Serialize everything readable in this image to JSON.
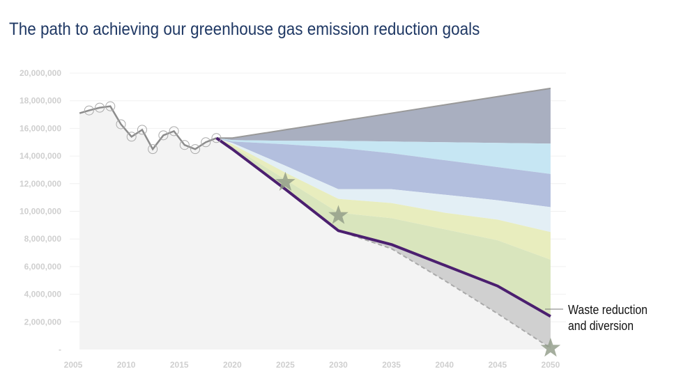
{
  "title": "The path to achieving our greenhouse gas emission reduction goals",
  "chart_data": {
    "type": "area",
    "title": "The path to achieving our greenhouse gas emission reduction goals",
    "xlim": [
      2005,
      2050
    ],
    "ylim": [
      0,
      20000000
    ],
    "x_ticks": [
      "2005",
      "2010",
      "2015",
      "2020",
      "2025",
      "2030",
      "2035",
      "2040",
      "2045",
      "2050"
    ],
    "y_ticks": [
      "-",
      "2,000,000",
      "4,000,000",
      "6,000,000",
      "8,000,000",
      "10,000,000",
      "12,000,000",
      "14,000,000",
      "16,000,000",
      "18,000,000",
      "20,000,000"
    ],
    "grid": true,
    "historical": {
      "x": [
        2005.6,
        2006.5,
        2007.5,
        2008.5,
        2009.5,
        2010.5,
        2011.5,
        2012.5,
        2013.5,
        2014.5,
        2015.5,
        2016.5,
        2017.5,
        2018.5
      ],
      "y": [
        17100000,
        17300000,
        17500000,
        17600000,
        16300000,
        15400000,
        15900000,
        14500000,
        15500000,
        15800000,
        14800000,
        14500000,
        15000000,
        15300000
      ],
      "markers_from_index": 1
    },
    "projection_x": [
      2018.5,
      2020,
      2025,
      2030,
      2035,
      2040,
      2045,
      2050
    ],
    "bands": [
      {
        "color": "#a9afc0",
        "upper": [
          15.3,
          15.3,
          15.9,
          16.5,
          17.1,
          17.7,
          18.3,
          18.9
        ],
        "lower": [
          15.3,
          15.15,
          15.1,
          15.1,
          15.05,
          15.0,
          14.95,
          14.9
        ]
      },
      {
        "color": "#c6e6f3",
        "upper": [
          15.3,
          15.15,
          15.1,
          15.1,
          15.05,
          15.0,
          14.95,
          14.9
        ],
        "lower": [
          15.3,
          15.05,
          14.85,
          14.6,
          14.2,
          13.7,
          13.2,
          12.7
        ]
      },
      {
        "color": "#b3bfde",
        "upper": [
          15.3,
          15.05,
          14.85,
          14.6,
          14.2,
          13.7,
          13.2,
          12.7
        ],
        "lower": [
          15.3,
          14.95,
          13.3,
          11.6,
          11.6,
          11.2,
          10.8,
          10.3
        ]
      },
      {
        "color": "#e3eff5",
        "upper": [
          15.3,
          14.95,
          13.3,
          11.6,
          11.6,
          11.2,
          10.8,
          10.3
        ],
        "lower": [
          15.3,
          14.85,
          12.8,
          10.9,
          10.6,
          9.9,
          9.4,
          8.5
        ]
      },
      {
        "color": "#e8edbe",
        "upper": [
          15.3,
          14.85,
          12.8,
          10.9,
          10.6,
          9.9,
          9.4,
          8.5
        ],
        "lower": [
          15.3,
          14.7,
          12.3,
          9.9,
          9.5,
          8.7,
          7.9,
          6.5
        ]
      },
      {
        "color": "#d9e5bd",
        "upper": [
          15.3,
          14.7,
          12.3,
          9.9,
          9.5,
          8.7,
          7.9,
          6.5
        ],
        "lower": [
          15.3,
          14.5,
          11.6,
          8.6,
          7.6,
          6.1,
          4.6,
          2.4
        ]
      },
      {
        "color": "#d0d0d0",
        "upper": [
          15.3,
          14.5,
          11.6,
          8.6,
          7.6,
          6.1,
          4.6,
          2.4
        ],
        "lower": [
          15.3,
          14.5,
          11.6,
          8.6,
          7.3,
          5.0,
          2.6,
          0.1
        ]
      }
    ],
    "band_units": "millions",
    "waste_line": {
      "name": "Waste reduction and diversion",
      "color": "#4b1f6f",
      "y": [
        15.3,
        14.5,
        11.6,
        8.6,
        7.6,
        6.1,
        4.6,
        2.4
      ]
    },
    "target_line": {
      "style": "dashed",
      "color": "#aaaaaa",
      "y": [
        15.3,
        14.5,
        11.6,
        8.6,
        7.3,
        5.0,
        2.6,
        0.1
      ]
    },
    "targets": [
      {
        "x": 2025,
        "y": 12100000
      },
      {
        "x": 2030,
        "y": 9700000
      },
      {
        "x": 2050,
        "y": 100000
      }
    ],
    "annotation": [
      "Waste reduction",
      "and diversion"
    ]
  }
}
